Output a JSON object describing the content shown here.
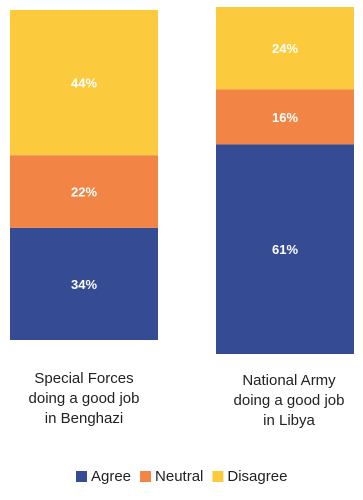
{
  "chart_data": {
    "type": "bar",
    "stacked": true,
    "categories": [
      [
        "Special Forces",
        "doing a good job",
        "in Benghazi"
      ],
      [
        "National Army",
        "doing a good job",
        "in Libya"
      ]
    ],
    "series": [
      {
        "name": "Agree",
        "values": [
          34,
          61
        ],
        "color": "#354B94"
      },
      {
        "name": "Neutral",
        "values": [
          22,
          16
        ],
        "color": "#F28545"
      },
      {
        "name": "Disagree",
        "values": [
          44,
          24
        ],
        "color": "#FCCB3D"
      }
    ],
    "value_suffix": "%",
    "legend_position": "bottom",
    "grid": false
  }
}
